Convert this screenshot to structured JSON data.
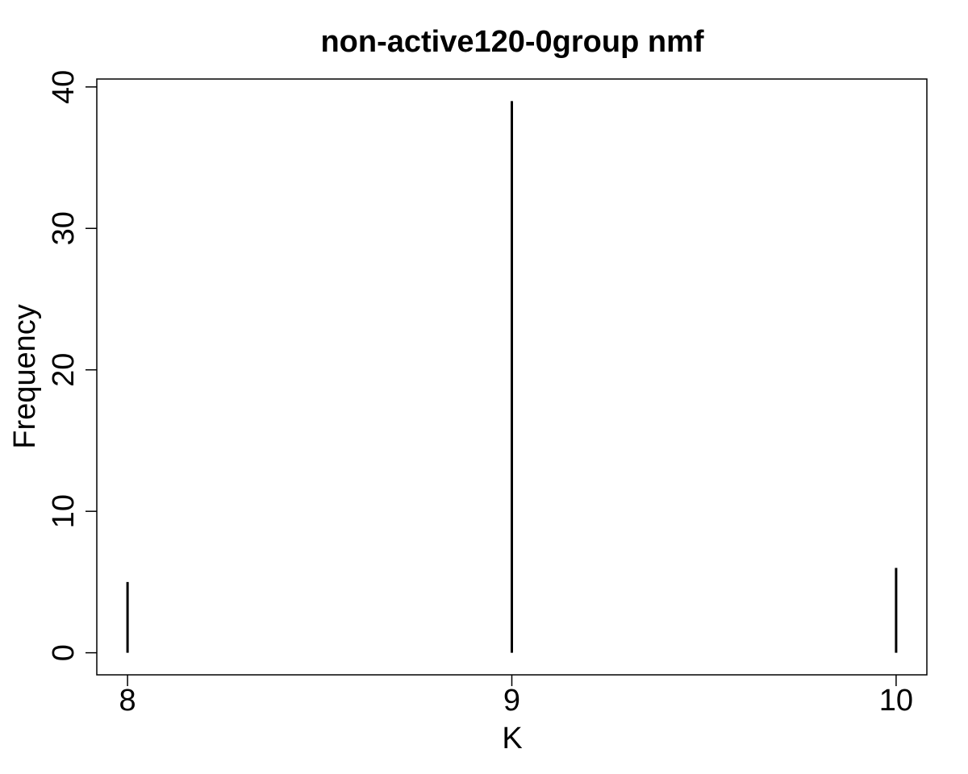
{
  "chart_data": {
    "type": "bar",
    "title": "non-active120-0group nmf",
    "xlabel": "K",
    "ylabel": "Frequency",
    "x": [
      8,
      9,
      10
    ],
    "values": [
      5,
      39,
      6
    ],
    "xticks": [
      "8",
      "9",
      "10"
    ],
    "yticks": [
      "0",
      "10",
      "20",
      "30",
      "40"
    ],
    "xlim": [
      7.92,
      10.08
    ],
    "ylim": [
      -1.56,
      40.56
    ],
    "grid": false,
    "bar_color": "#000000"
  }
}
